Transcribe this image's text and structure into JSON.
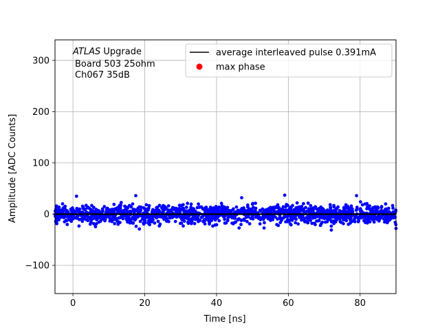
{
  "chart_data": {
    "type": "scatter",
    "title": "",
    "xlabel": "Time [ns]",
    "ylabel": "Amplitude [ADC Counts]",
    "xlim": [
      -5,
      90
    ],
    "ylim": [
      -155,
      340
    ],
    "xticks": [
      0,
      20,
      40,
      60,
      80
    ],
    "yticks": [
      -100,
      0,
      100,
      200,
      300
    ],
    "grid": true,
    "legend_position": "top-right",
    "annotation": {
      "line1_italic": "ATLAS",
      "line1_rest": " Upgrade",
      "line2": "Board 503 25ohm",
      "line3": "Ch067 35dB"
    },
    "series": [
      {
        "name": "average interleaved pulse 0.391mA",
        "kind": "line",
        "color": "#000000",
        "x": [
          -5,
          0,
          10,
          20,
          30,
          40,
          50,
          60,
          70,
          80,
          90
        ],
        "y": [
          0,
          0,
          0,
          0,
          0,
          0,
          0,
          0,
          0,
          0,
          0
        ]
      },
      {
        "name": "max phase",
        "kind": "marker",
        "color": "#ff0000",
        "x": [],
        "y": []
      },
      {
        "name": "",
        "kind": "scatter",
        "color": "#0000ff",
        "description_of_values": "noise samples around 0 ADC counts, spread roughly -30 to +37",
        "x_range": [
          -5,
          90
        ],
        "y_spread": 9,
        "extremes": [
          [
            1,
            35
          ],
          [
            17.5,
            36
          ],
          [
            47,
            32
          ],
          [
            59,
            37
          ],
          [
            79,
            36
          ],
          [
            18.5,
            -29
          ],
          [
            72,
            -31
          ],
          [
            90,
            -28
          ]
        ]
      }
    ]
  }
}
